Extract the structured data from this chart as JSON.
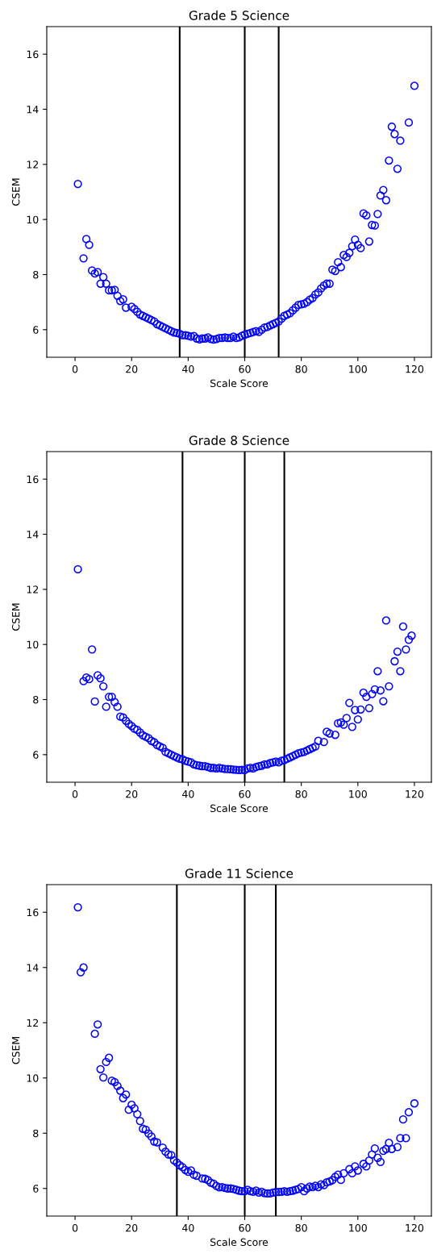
{
  "chart_data": [
    {
      "type": "scatter",
      "title": "Grade 5 Science",
      "xlabel": "Scale Score",
      "ylabel": "CSEM",
      "xlim": [
        -10,
        126
      ],
      "ylim": [
        5,
        17
      ],
      "xticks": [
        0,
        20,
        40,
        60,
        80,
        100,
        120
      ],
      "yticks": [
        6,
        8,
        10,
        12,
        14,
        16
      ],
      "grid": false,
      "marker": "circle",
      "series": [
        {
          "color": "#0000ff",
          "x": [
            1,
            3,
            4,
            5,
            6,
            7,
            8,
            9,
            10,
            11,
            12,
            13,
            14,
            15,
            16,
            17,
            18,
            20,
            21,
            22,
            23,
            24,
            25,
            26,
            27,
            28,
            29,
            30,
            31,
            32,
            33,
            34,
            35,
            36,
            37,
            38,
            39,
            40,
            41,
            42,
            43,
            44,
            45,
            46,
            47,
            48,
            49,
            50,
            51,
            52,
            53,
            54,
            55,
            56,
            57,
            58,
            59,
            60,
            61,
            62,
            63,
            64,
            65,
            66,
            67,
            68,
            69,
            70,
            71,
            72,
            73,
            74,
            75,
            76,
            77,
            78,
            79,
            80,
            81,
            82,
            83,
            84,
            85,
            86,
            87,
            88,
            89,
            90,
            91,
            92,
            93,
            94,
            95,
            96,
            97,
            98,
            99,
            100,
            101,
            102,
            103,
            104,
            105,
            106,
            107,
            108,
            109,
            110,
            111,
            112,
            113,
            114,
            115,
            118,
            120
          ],
          "values": [
            11.29,
            8.59,
            9.29,
            9.08,
            8.15,
            8.04,
            8.09,
            7.67,
            7.91,
            7.67,
            7.43,
            7.43,
            7.45,
            7.23,
            7.04,
            7.1,
            6.8,
            6.83,
            6.75,
            6.65,
            6.55,
            6.5,
            6.45,
            6.4,
            6.35,
            6.3,
            6.2,
            6.15,
            6.1,
            6.05,
            6.0,
            5.95,
            5.9,
            5.88,
            5.85,
            5.8,
            5.8,
            5.78,
            5.75,
            5.77,
            5.68,
            5.65,
            5.68,
            5.68,
            5.72,
            5.66,
            5.64,
            5.66,
            5.7,
            5.7,
            5.72,
            5.7,
            5.7,
            5.75,
            5.7,
            5.72,
            5.78,
            5.82,
            5.85,
            5.88,
            5.92,
            5.95,
            5.92,
            6.0,
            6.08,
            6.1,
            6.15,
            6.2,
            6.25,
            6.3,
            6.4,
            6.5,
            6.55,
            6.6,
            6.7,
            6.8,
            6.9,
            6.92,
            6.94,
            7.0,
            7.09,
            7.15,
            7.28,
            7.35,
            7.5,
            7.6,
            7.67,
            7.67,
            8.18,
            8.13,
            8.45,
            8.27,
            8.71,
            8.64,
            8.79,
            9.03,
            9.27,
            9.08,
            8.96,
            10.22,
            10.15,
            9.2,
            9.8,
            9.78,
            10.2,
            10.87,
            11.07,
            10.7,
            12.14,
            13.37,
            13.1,
            11.84,
            12.86,
            13.52,
            14.85
          ]
        }
      ],
      "ref_lines": [
        {
          "axis": "x",
          "value": 37,
          "color": "#000000"
        },
        {
          "axis": "x",
          "value": 60,
          "color": "#000000"
        },
        {
          "axis": "x",
          "value": 72,
          "color": "#000000"
        }
      ]
    },
    {
      "type": "scatter",
      "title": "Grade 8 Science",
      "xlabel": "Scale Score",
      "ylabel": "CSEM",
      "xlim": [
        -10,
        126
      ],
      "ylim": [
        5,
        17
      ],
      "xticks": [
        0,
        20,
        40,
        60,
        80,
        100,
        120
      ],
      "yticks": [
        6,
        8,
        10,
        12,
        14,
        16
      ],
      "grid": false,
      "marker": "circle",
      "series": [
        {
          "color": "#0000ff",
          "x": [
            1,
            3,
            4,
            5,
            6,
            7,
            8,
            9,
            10,
            11,
            12,
            13,
            14,
            15,
            16,
            17,
            18,
            19,
            20,
            21,
            22,
            23,
            24,
            25,
            26,
            27,
            28,
            29,
            30,
            31,
            32,
            33,
            34,
            35,
            36,
            37,
            38,
            39,
            40,
            41,
            42,
            43,
            44,
            45,
            46,
            47,
            48,
            49,
            50,
            51,
            52,
            53,
            54,
            55,
            56,
            57,
            58,
            59,
            60,
            61,
            62,
            63,
            64,
            65,
            66,
            67,
            68,
            69,
            70,
            71,
            72,
            73,
            74,
            75,
            76,
            77,
            78,
            79,
            80,
            81,
            82,
            83,
            84,
            85,
            86,
            88,
            89,
            90,
            92,
            93,
            94,
            95,
            96,
            97,
            98,
            99,
            100,
            101,
            102,
            103,
            104,
            105,
            106,
            107,
            108,
            109,
            110,
            111,
            113,
            114,
            115,
            116,
            117,
            118,
            119
          ],
          "values": [
            12.73,
            8.67,
            8.8,
            8.74,
            9.82,
            7.93,
            8.88,
            8.77,
            8.48,
            7.74,
            8.1,
            8.1,
            7.91,
            7.74,
            7.38,
            7.35,
            7.23,
            7.12,
            7.04,
            6.94,
            6.9,
            6.8,
            6.7,
            6.65,
            6.6,
            6.5,
            6.45,
            6.35,
            6.3,
            6.25,
            6.1,
            6.05,
            6.0,
            5.95,
            5.9,
            5.85,
            5.83,
            5.78,
            5.75,
            5.72,
            5.65,
            5.62,
            5.6,
            5.58,
            5.58,
            5.55,
            5.52,
            5.52,
            5.5,
            5.52,
            5.5,
            5.48,
            5.48,
            5.47,
            5.46,
            5.45,
            5.44,
            5.45,
            5.44,
            5.5,
            5.52,
            5.5,
            5.55,
            5.58,
            5.6,
            5.65,
            5.65,
            5.7,
            5.72,
            5.75,
            5.72,
            5.78,
            5.8,
            5.85,
            5.9,
            5.95,
            6.0,
            6.05,
            6.08,
            6.1,
            6.15,
            6.2,
            6.25,
            6.3,
            6.5,
            6.46,
            6.83,
            6.77,
            6.72,
            7.14,
            7.17,
            7.09,
            7.33,
            7.88,
            7.01,
            7.62,
            7.28,
            7.64,
            8.25,
            8.1,
            7.69,
            8.2,
            8.37,
            9.03,
            8.33,
            7.94,
            10.87,
            8.48,
            9.39,
            9.74,
            9.03,
            10.65,
            9.82,
            10.17,
            10.32
          ]
        }
      ],
      "ref_lines": [
        {
          "axis": "x",
          "value": 38,
          "color": "#000000"
        },
        {
          "axis": "x",
          "value": 60,
          "color": "#000000"
        },
        {
          "axis": "x",
          "value": 74,
          "color": "#000000"
        }
      ]
    },
    {
      "type": "scatter",
      "title": "Grade 11 Science",
      "xlabel": "Scale Score",
      "ylabel": "CSEM",
      "xlim": [
        -10,
        126
      ],
      "ylim": [
        5,
        17
      ],
      "xticks": [
        0,
        20,
        40,
        60,
        80,
        100,
        120
      ],
      "yticks": [
        6,
        8,
        10,
        12,
        14,
        16
      ],
      "grid": false,
      "marker": "circle",
      "series": [
        {
          "color": "#0000ff",
          "x": [
            1,
            2,
            3,
            7,
            8,
            9,
            10,
            11,
            12,
            13,
            14,
            15,
            16,
            17,
            18,
            19,
            20,
            21,
            22,
            23,
            24,
            25,
            26,
            27,
            28,
            29,
            31,
            32,
            33,
            34,
            35,
            36,
            37,
            38,
            39,
            40,
            41,
            42,
            43,
            45,
            46,
            47,
            48,
            49,
            50,
            51,
            52,
            53,
            54,
            55,
            56,
            57,
            58,
            59,
            60,
            61,
            62,
            63,
            64,
            65,
            66,
            67,
            68,
            69,
            70,
            71,
            72,
            73,
            74,
            75,
            76,
            77,
            78,
            79,
            80,
            81,
            82,
            83,
            84,
            85,
            86,
            87,
            88,
            89,
            90,
            91,
            92,
            93,
            94,
            95,
            97,
            98,
            99,
            100,
            102,
            103,
            104,
            105,
            106,
            107,
            108,
            109,
            110,
            111,
            112,
            114,
            115,
            116,
            117,
            118,
            120
          ],
          "values": [
            16.18,
            13.83,
            14.0,
            11.6,
            11.94,
            10.32,
            10.02,
            10.58,
            10.73,
            9.9,
            9.85,
            9.71,
            9.54,
            9.27,
            9.4,
            8.85,
            9.03,
            8.9,
            8.69,
            8.44,
            8.16,
            8.13,
            7.99,
            7.88,
            7.7,
            7.67,
            7.48,
            7.33,
            7.23,
            7.21,
            7.02,
            6.94,
            6.84,
            6.77,
            6.67,
            6.6,
            6.65,
            6.5,
            6.46,
            6.36,
            6.35,
            6.3,
            6.21,
            6.17,
            6.09,
            6.04,
            6.05,
            6.02,
            6.0,
            6.0,
            5.98,
            5.95,
            5.92,
            5.9,
            5.9,
            5.95,
            5.9,
            5.88,
            5.92,
            5.85,
            5.88,
            5.83,
            5.82,
            5.82,
            5.85,
            5.87,
            5.87,
            5.88,
            5.9,
            5.88,
            5.9,
            5.92,
            5.95,
            5.98,
            6.05,
            5.9,
            6.0,
            6.07,
            6.05,
            6.1,
            6.05,
            6.15,
            6.12,
            6.22,
            6.25,
            6.3,
            6.42,
            6.5,
            6.31,
            6.55,
            6.7,
            6.55,
            6.8,
            6.65,
            6.89,
            6.8,
            7.01,
            7.23,
            7.45,
            7.11,
            6.96,
            7.36,
            7.43,
            7.65,
            7.43,
            7.5,
            7.82,
            8.5,
            7.82,
            8.76,
            9.08
          ]
        }
      ],
      "ref_lines": [
        {
          "axis": "x",
          "value": 36,
          "color": "#000000"
        },
        {
          "axis": "x",
          "value": 60,
          "color": "#000000"
        },
        {
          "axis": "x",
          "value": 71,
          "color": "#000000"
        }
      ]
    }
  ]
}
